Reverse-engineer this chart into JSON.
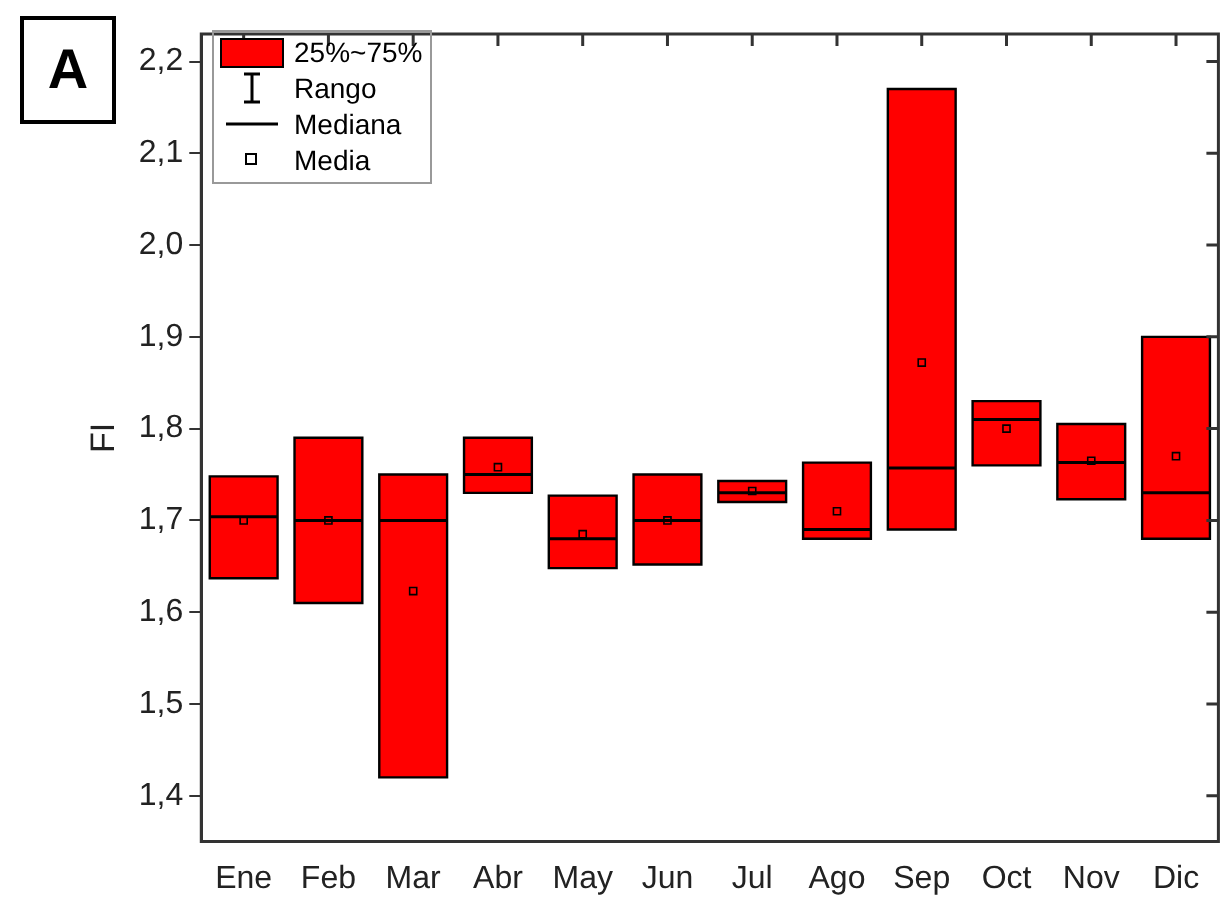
{
  "chart_data": {
    "type": "box",
    "ylabel": "FI",
    "categories": [
      "Ene",
      "Feb",
      "Mar",
      "Abr",
      "May",
      "Jun",
      "Jul",
      "Ago",
      "Sep",
      "Oct",
      "Nov",
      "Dic"
    ],
    "series": [
      {
        "name": "25%~75%",
        "color": "#ff0000",
        "boxes": [
          {
            "low": 1.637,
            "q1": 1.637,
            "median": 1.704,
            "q3": 1.748,
            "high": 1.748,
            "mean": 1.7
          },
          {
            "low": 1.61,
            "q1": 1.61,
            "median": 1.7,
            "q3": 1.79,
            "high": 1.79,
            "mean": 1.7
          },
          {
            "low": 1.42,
            "q1": 1.42,
            "median": 1.7,
            "q3": 1.75,
            "high": 1.75,
            "mean": 1.623
          },
          {
            "low": 1.73,
            "q1": 1.73,
            "median": 1.75,
            "q3": 1.79,
            "high": 1.79,
            "mean": 1.758
          },
          {
            "low": 1.648,
            "q1": 1.648,
            "median": 1.68,
            "q3": 1.727,
            "high": 1.727,
            "mean": 1.685
          },
          {
            "low": 1.652,
            "q1": 1.652,
            "median": 1.7,
            "q3": 1.75,
            "high": 1.75,
            "mean": 1.7
          },
          {
            "low": 1.72,
            "q1": 1.72,
            "median": 1.73,
            "q3": 1.743,
            "high": 1.743,
            "mean": 1.732
          },
          {
            "low": 1.68,
            "q1": 1.68,
            "median": 1.69,
            "q3": 1.763,
            "high": 1.763,
            "mean": 1.71
          },
          {
            "low": 1.69,
            "q1": 1.69,
            "median": 1.757,
            "q3": 2.17,
            "high": 2.17,
            "mean": 1.872
          },
          {
            "low": 1.76,
            "q1": 1.76,
            "median": 1.81,
            "q3": 1.83,
            "high": 1.83,
            "mean": 1.8
          },
          {
            "low": 1.723,
            "q1": 1.723,
            "median": 1.763,
            "q3": 1.805,
            "high": 1.805,
            "mean": 1.765
          },
          {
            "low": 1.68,
            "q1": 1.68,
            "median": 1.73,
            "q3": 1.9,
            "high": 1.9,
            "mean": 1.77
          }
        ]
      }
    ],
    "ylim": [
      1.35,
      2.23
    ],
    "yticks": [
      {
        "value": 1.4,
        "label": "1,4"
      },
      {
        "value": 1.5,
        "label": "1,5"
      },
      {
        "value": 1.6,
        "label": "1,6"
      },
      {
        "value": 1.7,
        "label": "1,7"
      },
      {
        "value": 1.8,
        "label": "1,8"
      },
      {
        "value": 1.9,
        "label": "1,9"
      },
      {
        "value": 2.0,
        "label": "2,0"
      },
      {
        "value": 2.1,
        "label": "2,1"
      },
      {
        "value": 2.2,
        "label": "2,2"
      }
    ],
    "legend": "top left",
    "grid": false,
    "annotations": [
      "A",
      "Rango",
      "Mediana",
      "Media"
    ]
  }
}
